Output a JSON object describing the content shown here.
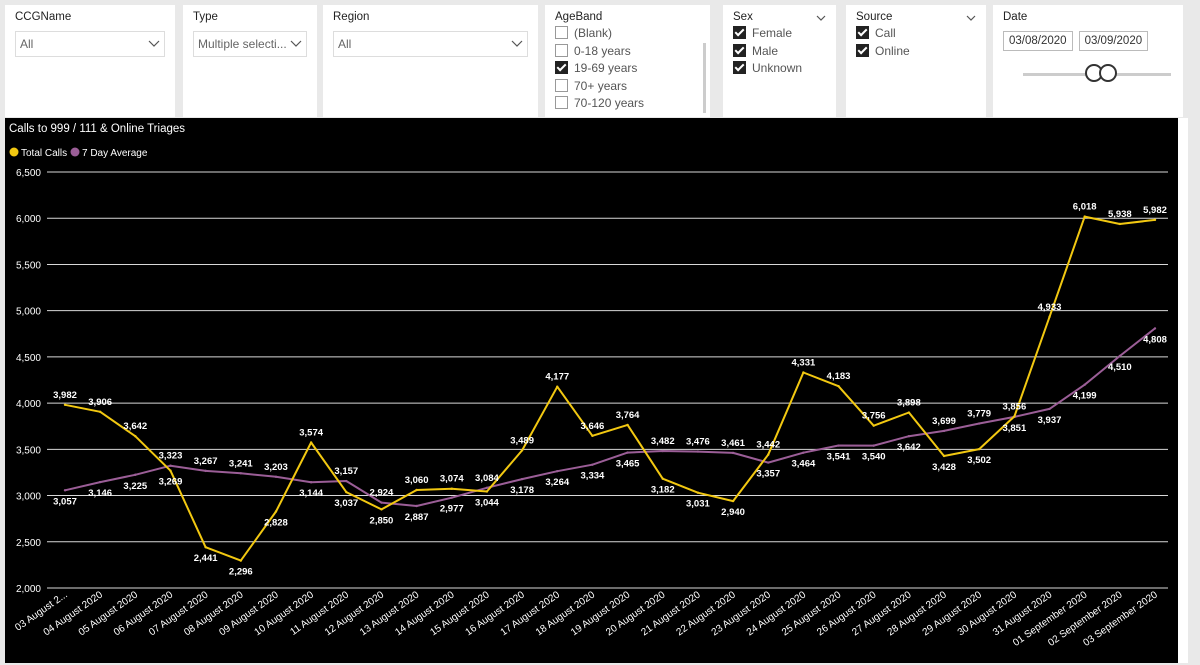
{
  "slicers": {
    "ccg": {
      "title": "CCGName",
      "value": "All"
    },
    "type": {
      "title": "Type",
      "value": "Multiple selecti..."
    },
    "region": {
      "title": "Region",
      "value": "All"
    },
    "ageband": {
      "title": "AgeBand",
      "items": [
        {
          "label": "(Blank)",
          "checked": false
        },
        {
          "label": "0-18 years",
          "checked": false
        },
        {
          "label": "19-69 years",
          "checked": true
        },
        {
          "label": "70+ years",
          "checked": false
        },
        {
          "label": "70-120 years",
          "checked": false
        }
      ]
    },
    "sex": {
      "title": "Sex",
      "items": [
        {
          "label": "Female",
          "checked": true
        },
        {
          "label": "Male",
          "checked": true
        },
        {
          "label": "Unknown",
          "checked": true
        }
      ]
    },
    "source": {
      "title": "Source",
      "items": [
        {
          "label": "Call",
          "checked": true
        },
        {
          "label": "Online",
          "checked": true
        }
      ]
    },
    "date": {
      "title": "Date",
      "start": "03/08/2020",
      "end": "03/09/2020"
    }
  },
  "chart_data": {
    "type": "line",
    "title": "Calls to 999 / 111 & Online Triages",
    "xlabel": "",
    "ylabel": "",
    "ylim": [
      2000,
      6500
    ],
    "yticks": [
      "2,000",
      "2,500",
      "3,000",
      "3,500",
      "4,000",
      "4,500",
      "5,000",
      "5,500",
      "6,000",
      "6,500"
    ],
    "grid": true,
    "legend": "top-left",
    "categories": [
      "03 August 2...",
      "04 August 2020",
      "05 August 2020",
      "06 August 2020",
      "07 August 2020",
      "08 August 2020",
      "09 August 2020",
      "10 August 2020",
      "11 August 2020",
      "12 August 2020",
      "13 August 2020",
      "14 August 2020",
      "15 August 2020",
      "16 August 2020",
      "17 August 2020",
      "18 August 2020",
      "19 August 2020",
      "20 August 2020",
      "21 August 2020",
      "22 August 2020",
      "23 August 2020",
      "24 August 2020",
      "25 August 2020",
      "26 August 2020",
      "27 August 2020",
      "28 August 2020",
      "29 August 2020",
      "30 August 2020",
      "31 August 2020",
      "01 September 2020",
      "02 September 2020",
      "03 September 2020"
    ],
    "series": [
      {
        "name": "Total Calls",
        "color": "#f2c811",
        "values": [
          3982,
          3906,
          3642,
          3269,
          2441,
          2296,
          2828,
          3574,
          3037,
          2850,
          3060,
          3074,
          3044,
          3489,
          4177,
          3646,
          3764,
          3182,
          3031,
          2940,
          3442,
          4331,
          4183,
          3756,
          3898,
          3428,
          3502,
          3856,
          4933,
          6018,
          5938,
          5982
        ],
        "labels": [
          "3,982",
          "3,906",
          "3,642",
          "3,269",
          "2,441",
          "2,296",
          "2,828",
          "3,574",
          "3,037",
          "2,850",
          "3,060",
          "3,074",
          "3,044",
          "3,489",
          "4,177",
          "3,646",
          "3,764",
          "3,182",
          "3,031",
          "2,940",
          "3,442",
          "4,331",
          "4,183",
          "3,756",
          "3,898",
          "3,428",
          "3,502",
          "3,856",
          "4,933",
          "6,018",
          "5,938",
          "5,982"
        ]
      },
      {
        "name": "7 Day Average",
        "color": "#9b5e97",
        "values": [
          3057,
          3146,
          3225,
          3323,
          3267,
          3241,
          3203,
          3144,
          3157,
          2924,
          2887,
          2977,
          3084,
          3178,
          3264,
          3334,
          3465,
          3482,
          3476,
          3461,
          3357,
          3464,
          3541,
          3540,
          3642,
          3699,
          3779,
          3851,
          3937,
          4199,
          4510,
          4808
        ],
        "labels": [
          "3,057",
          "3,146",
          "3,225",
          "3,323",
          "3,267",
          "3,241",
          "3,203",
          "3,144",
          "3,157",
          "2,924",
          "2,887",
          "2,977",
          "3,084",
          "3,178",
          "3,264",
          "3,334",
          "3,465",
          "3,482",
          "3,476",
          "3,461",
          "3,357",
          "3,464",
          "3,541",
          "3,540",
          "3,642",
          "3,699",
          "3,779",
          "3,851",
          "3,937",
          "4,199",
          "4,510",
          "4,808"
        ]
      }
    ]
  }
}
